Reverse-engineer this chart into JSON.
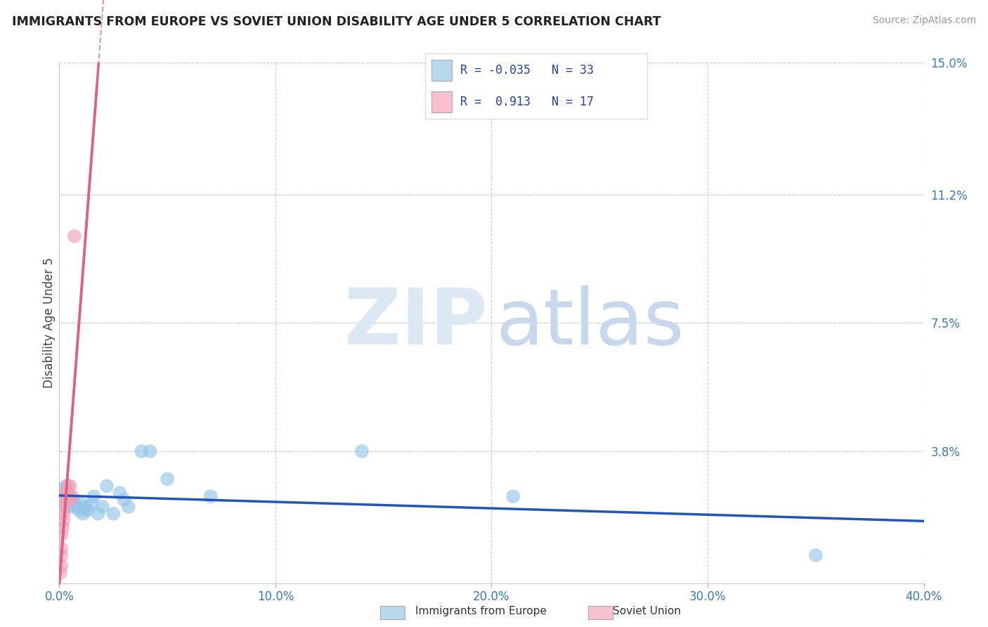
{
  "title": "IMMIGRANTS FROM EUROPE VS SOVIET UNION DISABILITY AGE UNDER 5 CORRELATION CHART",
  "source": "Source: ZipAtlas.com",
  "ylabel": "Disability Age Under 5",
  "xlim": [
    0.0,
    0.4
  ],
  "ylim": [
    0.0,
    0.15
  ],
  "yticks": [
    0.0,
    0.038,
    0.075,
    0.112,
    0.15
  ],
  "ytick_labels": [
    "",
    "3.8%",
    "7.5%",
    "11.2%",
    "15.0%"
  ],
  "xticks": [
    0.0,
    0.1,
    0.2,
    0.3,
    0.4
  ],
  "xtick_labels": [
    "0.0%",
    "10.0%",
    "20.0%",
    "30.0%",
    "40.0%"
  ],
  "background_color": "#ffffff",
  "grid_color": "#cccccc",
  "series_blue": {
    "name": "Immigrants from Europe",
    "color": "#92c5e8",
    "R": -0.035,
    "N": 33,
    "x": [
      0.001,
      0.002,
      0.002,
      0.003,
      0.003,
      0.004,
      0.004,
      0.005,
      0.005,
      0.006,
      0.007,
      0.008,
      0.009,
      0.01,
      0.011,
      0.012,
      0.013,
      0.015,
      0.016,
      0.018,
      0.02,
      0.022,
      0.025,
      0.028,
      0.03,
      0.032,
      0.038,
      0.042,
      0.05,
      0.07,
      0.14,
      0.21,
      0.35
    ],
    "y": [
      0.024,
      0.027,
      0.025,
      0.022,
      0.028,
      0.026,
      0.024,
      0.025,
      0.022,
      0.024,
      0.023,
      0.022,
      0.021,
      0.023,
      0.02,
      0.022,
      0.021,
      0.023,
      0.025,
      0.02,
      0.022,
      0.028,
      0.02,
      0.026,
      0.024,
      0.022,
      0.038,
      0.038,
      0.03,
      0.025,
      0.038,
      0.025,
      0.008
    ],
    "trend_color": "#2255bb"
  },
  "series_pink": {
    "name": "Soviet Union",
    "color": "#f0a0b8",
    "R": 0.913,
    "N": 17,
    "x": [
      0.0005,
      0.001,
      0.001,
      0.001,
      0.001,
      0.0015,
      0.002,
      0.002,
      0.002,
      0.003,
      0.003,
      0.004,
      0.004,
      0.005,
      0.005,
      0.006,
      0.007
    ],
    "y": [
      0.003,
      0.005,
      0.008,
      0.01,
      0.014,
      0.016,
      0.018,
      0.02,
      0.022,
      0.024,
      0.026,
      0.026,
      0.028,
      0.028,
      0.024,
      0.025,
      0.1
    ],
    "trend_color": "#e06080"
  },
  "legend_blue_color": "#b8d8f0",
  "legend_pink_color": "#f8c0d0",
  "watermark_zip_color": "#dce8f4",
  "watermark_atlas_color": "#c8d8ec"
}
